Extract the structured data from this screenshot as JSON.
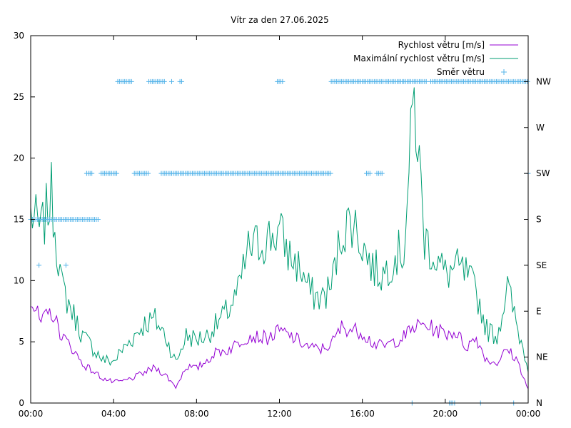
{
  "chart_data": {
    "type": "line",
    "title": "Vítr za den 27.06.2025",
    "x_tick_labels": [
      "00:00",
      "04:00",
      "08:00",
      "12:00",
      "16:00",
      "20:00",
      "00:00"
    ],
    "x_range_hours": [
      0,
      24
    ],
    "y_left_ticks": [
      "0",
      "5",
      "10",
      "15",
      "20",
      "25",
      "30"
    ],
    "ylim_left": [
      0,
      30
    ],
    "y_right_ticks": [
      "N",
      "NE",
      "E",
      "SE",
      "S",
      "SW",
      "W",
      "NW"
    ],
    "y_right_range_index": [
      0,
      8
    ],
    "grid": false,
    "legend_placement": "top-right",
    "series": [
      {
        "name": "Rychlost větru [m/s]",
        "color": "#9400d3",
        "style": "line",
        "x_hours": [
          0,
          0.5,
          1,
          1.5,
          2,
          2.5,
          3,
          3.5,
          4,
          4.5,
          5,
          5.5,
          6,
          6.5,
          7,
          7.5,
          8,
          8.5,
          9,
          9.5,
          10,
          10.5,
          11,
          11.5,
          12,
          12.5,
          13,
          13.5,
          14,
          14.5,
          15,
          15.5,
          16,
          16.5,
          17,
          17.5,
          18,
          18.5,
          19,
          19.5,
          20,
          20.5,
          21,
          21.5,
          22,
          22.5,
          23,
          23.5,
          24
        ],
        "values": [
          8.5,
          6.5,
          7.5,
          5.5,
          4.5,
          3.2,
          2.6,
          2.0,
          1.7,
          1.8,
          2.1,
          2.5,
          2.9,
          2.3,
          1.3,
          3.0,
          2.8,
          3.5,
          4.2,
          4.3,
          4.9,
          5.5,
          5.4,
          5.3,
          5.9,
          5.5,
          5.0,
          4.5,
          4.4,
          4.8,
          6.2,
          6.0,
          5.8,
          4.9,
          4.6,
          5.0,
          5.4,
          6.2,
          6.4,
          6.0,
          5.7,
          5.8,
          4.6,
          5.3,
          3.5,
          3.3,
          4.4,
          3.4,
          1.1
        ]
      },
      {
        "name": "Maximální rychlost větru [m/s]",
        "color": "#009e73",
        "style": "line",
        "x_hours": [
          0,
          0.5,
          1,
          1.5,
          2,
          2.5,
          3,
          3.5,
          4,
          4.5,
          5,
          5.5,
          6,
          6.5,
          7,
          7.5,
          8,
          8.5,
          9,
          9.5,
          10,
          10.5,
          11,
          11.5,
          12,
          12.5,
          13,
          13.5,
          14,
          14.5,
          15,
          15.5,
          16,
          16.5,
          17,
          17.5,
          18,
          18.5,
          19,
          19.5,
          20,
          20.5,
          21,
          21.5,
          22,
          22.5,
          23,
          23.5,
          24
        ],
        "values": [
          15.5,
          14.0,
          17.0,
          9.5,
          7.5,
          5.5,
          4.5,
          3.5,
          3.4,
          4.5,
          5.5,
          6.5,
          6.8,
          5.5,
          3.3,
          5.5,
          5.2,
          5.5,
          6.5,
          7.5,
          9.0,
          12.5,
          13.0,
          13.5,
          14.0,
          12.0,
          11.0,
          9.0,
          8.5,
          9.5,
          14.0,
          15.0,
          13.0,
          11.0,
          10.5,
          12.0,
          12.5,
          25.0,
          13.5,
          12.0,
          10.5,
          11.0,
          10.5,
          9.0,
          6.0,
          5.5,
          9.5,
          6.0,
          3.0
        ]
      },
      {
        "name": "Směr větru",
        "color": "#56b4e9",
        "style": "points",
        "direction_points": [
          {
            "start_hour": 0.0,
            "end_hour": 3.3,
            "dir": "S"
          },
          {
            "start_hour": 0.4,
            "end_hour": 0.4,
            "dir": "SE"
          },
          {
            "start_hour": 1.7,
            "end_hour": 1.7,
            "dir": "SE"
          },
          {
            "start_hour": 2.7,
            "end_hour": 3.0,
            "dir": "SW"
          },
          {
            "start_hour": 3.4,
            "end_hour": 4.2,
            "dir": "SW"
          },
          {
            "start_hour": 4.2,
            "end_hour": 4.9,
            "dir": "NW"
          },
          {
            "start_hour": 5.0,
            "end_hour": 5.7,
            "dir": "SW"
          },
          {
            "start_hour": 5.7,
            "end_hour": 6.5,
            "dir": "NW"
          },
          {
            "start_hour": 6.8,
            "end_hour": 6.8,
            "dir": "NW"
          },
          {
            "start_hour": 7.2,
            "end_hour": 7.3,
            "dir": "NW"
          },
          {
            "start_hour": 6.3,
            "end_hour": 14.5,
            "dir": "SW"
          },
          {
            "start_hour": 11.9,
            "end_hour": 12.2,
            "dir": "NW"
          },
          {
            "start_hour": 14.5,
            "end_hour": 17.0,
            "dir": "NW"
          },
          {
            "start_hour": 16.2,
            "end_hour": 16.4,
            "dir": "SW"
          },
          {
            "start_hour": 16.7,
            "end_hour": 17.0,
            "dir": "SW"
          },
          {
            "start_hour": 17.1,
            "end_hour": 18.0,
            "dir": "NW"
          },
          {
            "start_hour": 18.0,
            "end_hour": 19.1,
            "dir": "NW"
          },
          {
            "start_hour": 19.3,
            "end_hour": 24.0,
            "dir": "NW"
          },
          {
            "start_hour": 24.0,
            "end_hour": 24.0,
            "dir": "SW"
          },
          {
            "start_hour": 18.4,
            "end_hour": 18.4,
            "dir": "N"
          },
          {
            "start_hour": 20.2,
            "end_hour": 20.5,
            "dir": "N"
          },
          {
            "start_hour": 21.7,
            "end_hour": 21.7,
            "dir": "N"
          },
          {
            "start_hour": 23.3,
            "end_hour": 23.3,
            "dir": "N"
          }
        ]
      }
    ]
  }
}
